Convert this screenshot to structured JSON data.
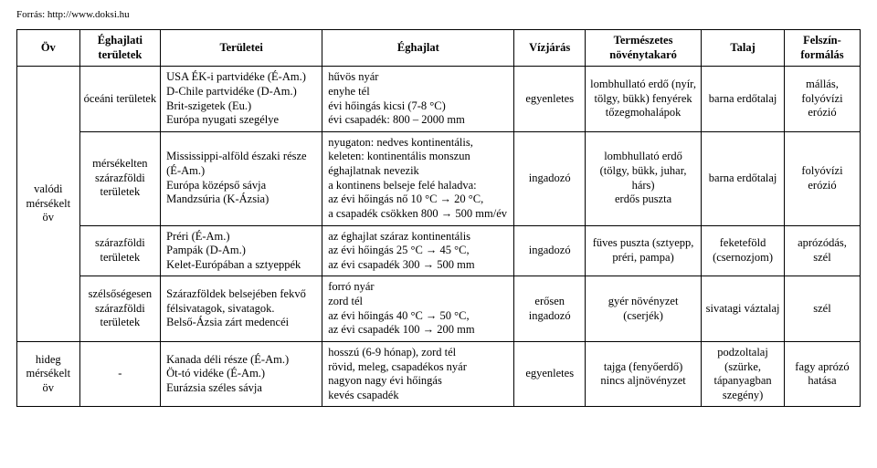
{
  "source": "Forrás: http://www.doksi.hu",
  "headers": {
    "h1": "Öv",
    "h2": "Éghajlati területek",
    "h3": "Területei",
    "h4": "Éghajlat",
    "h5": "Vízjárás",
    "h6": "Természetes növénytakaró",
    "h7": "Talaj",
    "h8": "Felszín-formálás"
  },
  "belt1": "valódi mérsékelt öv",
  "belt2": "hideg mérsékelt öv",
  "rows": {
    "r1": {
      "zone": "óceáni területek",
      "area": "USA ÉK-i partvidéke (É-Am.)\nD-Chile partvidéke (D-Am.)\nBrit-szigetek (Eu.)\nEurópa nyugati szegélye",
      "climate": "hűvös nyár\nenyhe tél\névi hőingás kicsi (7-8 °C)\névi csapadék: 800 – 2000 mm",
      "water": "egyenletes",
      "veg": "lombhullató erdő (nyír, tölgy, bükk) fenyérek tőzegmohalápok",
      "soil": "barna erdőtalaj",
      "surf": "mállás, folyóvízi erózió"
    },
    "r2": {
      "zone": "mérsékelten szárazföldi területek",
      "area": "Mississippi-alföld északi része\n(É-Am.)\nEurópa középső sávja\nMandzsúria (K-Ázsia)",
      "climate": "nyugaton: nedves kontinentális,\nkeleten: kontinentális monszun éghajlatnak nevezik\na kontinens belseje felé haladva:\naz évi hőingás nő 10 °C → 20 °C,\na csapadék csökken 800 → 500 mm/év",
      "water": "ingadozó",
      "veg": "lombhullató erdő (tölgy, bükk, juhar, hárs)\nerdős puszta",
      "soil": "barna erdőtalaj",
      "surf": "folyóvízi erózió"
    },
    "r3": {
      "zone": "szárazföldi területek",
      "area": "Préri (É-Am.)\nPampák (D-Am.)\nKelet-Európában a sztyeppék",
      "climate": "az éghajlat száraz kontinentális\naz évi hőingás 25 °C → 45 °C,\naz évi csapadék 300 → 500 mm",
      "water": "ingadozó",
      "veg": "füves puszta (sztyepp, préri, pampa)",
      "soil": "feketeföld (csernozjom)",
      "surf": "aprózódás, szél"
    },
    "r4": {
      "zone": "szélsőségesen szárazföldi területek",
      "area": "Szárazföldek belsejében fekvő félsivatagok, sivatagok.\nBelső-Ázsia zárt medencéi",
      "climate": "forró nyár\nzord tél\naz évi hőingás 40 °C → 50 °C,\naz évi csapadék 100 → 200 mm",
      "water": "erősen ingadozó",
      "veg": "gyér növényzet (cserjék)",
      "soil": "sivatagi váztalaj",
      "surf": "szél"
    },
    "r5": {
      "zone": "-",
      "area": "Kanada déli része (É-Am.)\nÖt-tó vidéke (É-Am.)\nEurázsia széles sávja",
      "climate": "hosszú (6-9 hónap), zord tél\nrövid, meleg, csapadékos nyár\nnagyon nagy évi hőingás\nkevés csapadék",
      "water": "egyenletes",
      "veg": "tajga (fenyőerdő)\nnincs aljnövényzet",
      "soil": "podzoltalaj (szürke, tápanyagban szegény)",
      "surf": "fagy aprózó hatása"
    }
  }
}
